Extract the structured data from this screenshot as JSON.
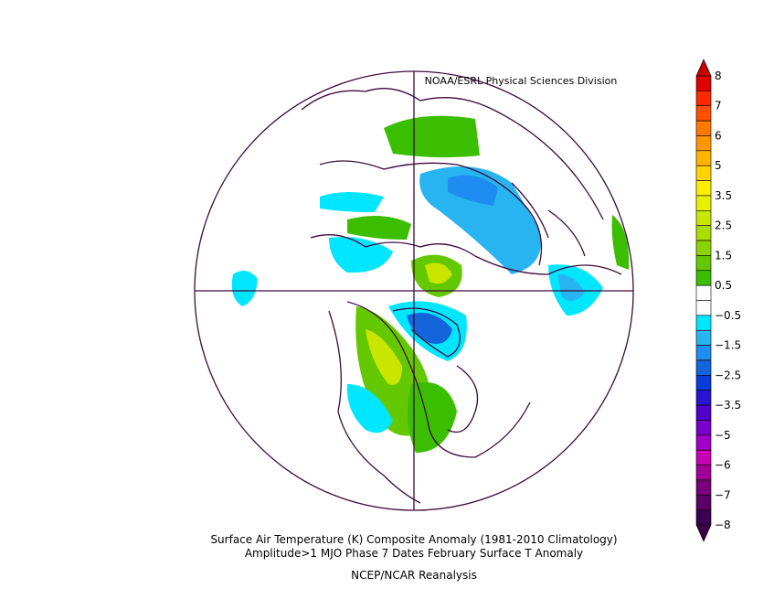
{
  "header": {
    "credit": "NOAA/ESRL Physical Sciences Division"
  },
  "colorbar": {
    "labels": [
      "8",
      "7",
      "6",
      "5",
      "3.5",
      "2.5",
      "1.5",
      "0.5",
      "−0.5",
      "−1.5",
      "−2.5",
      "−3.5",
      "−5",
      "−6",
      "−7",
      "−8"
    ],
    "colors": [
      "#e00000",
      "#ff2a00",
      "#ff5000",
      "#ff7800",
      "#ff9600",
      "#ffb400",
      "#ffd200",
      "#ffee00",
      "#e6f000",
      "#c8e600",
      "#aadc00",
      "#8cd200",
      "#64c800",
      "#3cbe00",
      "#ffffff",
      "#ffffff",
      "#00e6ff",
      "#28b4f0",
      "#1e8cf0",
      "#1464dc",
      "#0a3cdc",
      "#2814d2",
      "#5000c8",
      "#7800c8",
      "#a000c8",
      "#c800b4",
      "#a00096",
      "#780078",
      "#5a0064",
      "#3c0050"
    ],
    "top_color": "#c80000",
    "bottom_color": "#3c0046"
  },
  "caption": {
    "line1": "Surface Air Temperature (K) Composite Anomaly (1981-2010 Climatology)",
    "line2": "Amplitude>1 MJO Phase 7 Dates February Surface T Anomaly",
    "source": "NCEP/NCAR Reanalysis"
  }
}
